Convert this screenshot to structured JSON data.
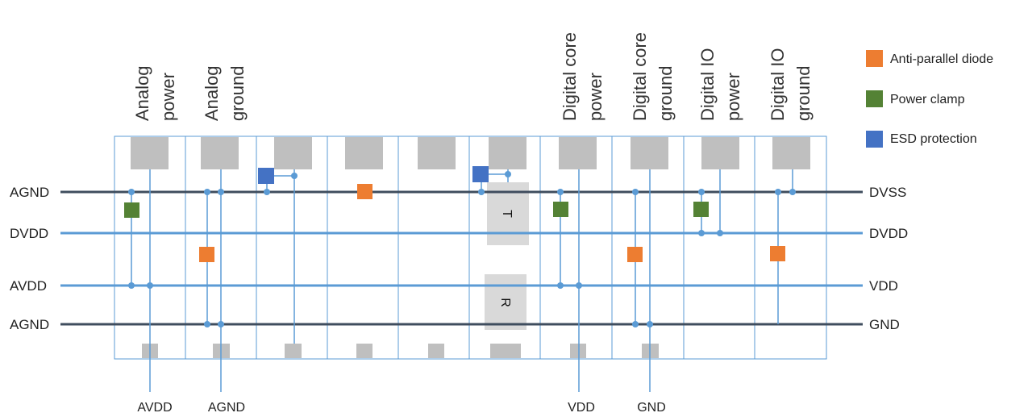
{
  "pad_titles": [
    {
      "line1": "Analog",
      "line2": "power"
    },
    {
      "line1": "Analog",
      "line2": "ground"
    },
    {
      "line1": "",
      "line2": ""
    },
    {
      "line1": "",
      "line2": ""
    },
    {
      "line1": "",
      "line2": ""
    },
    {
      "line1": "",
      "line2": ""
    },
    {
      "line1": "Digital core",
      "line2": "power"
    },
    {
      "line1": "Digital core",
      "line2": "ground"
    },
    {
      "line1": "Digital IO",
      "line2": "power"
    },
    {
      "line1": "Digital IO",
      "line2": "ground"
    }
  ],
  "rails": [
    {
      "left": "AGND",
      "right": "DVSS",
      "color": "#3f4d5e"
    },
    {
      "left": "DVDD",
      "right": "DVDD",
      "color": "#5b9bd5"
    },
    {
      "left": "AVDD",
      "right": "VDD",
      "color": "#5b9bd5"
    },
    {
      "left": "AGND",
      "right": "GND",
      "color": "#3f4d5e"
    }
  ],
  "bottom_labels": [
    "AVDD",
    "AGND",
    "VDD",
    "GND"
  ],
  "legend": [
    {
      "label": "Anti-parallel diode",
      "color": "#ed7d31"
    },
    {
      "label": "Power clamp",
      "color": "#548235"
    },
    {
      "label": "ESD protection",
      "color": "#4472c4"
    }
  ],
  "split_labels": {
    "top": "T",
    "bottom": "R"
  },
  "colors": {
    "cell_border": "#5b9bd5",
    "pad": "#bfbfbf",
    "wire": "#5b9bd5",
    "split_block": "#d9d9d9"
  }
}
